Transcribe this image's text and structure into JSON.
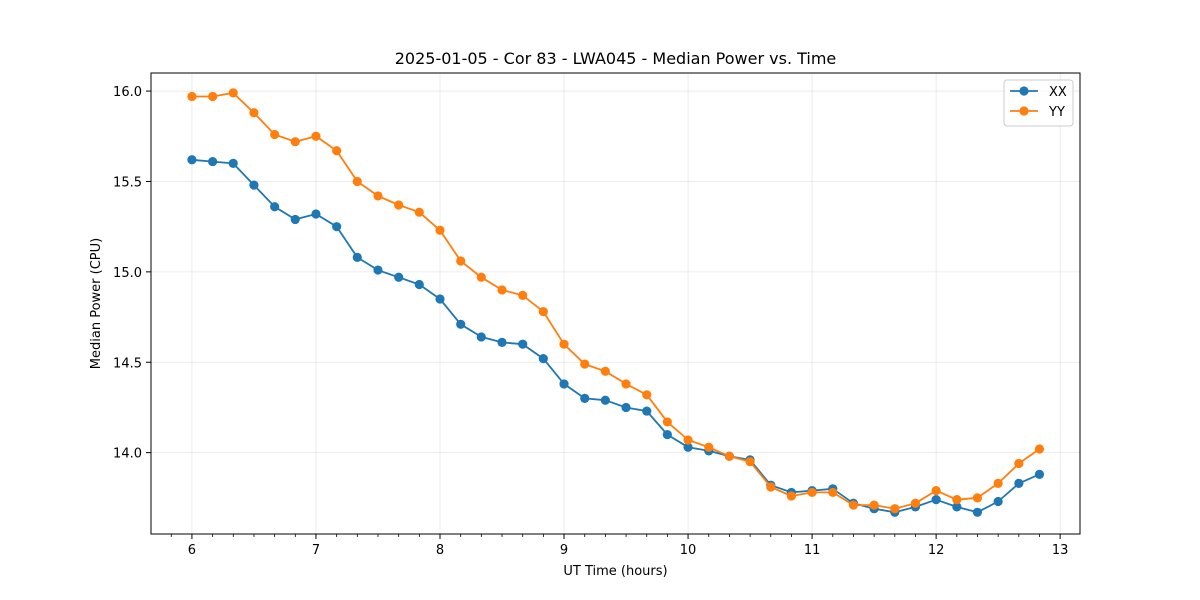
{
  "chart_data": {
    "type": "line",
    "title": "2025-01-05 - Cor 83 - LWA045 - Median Power vs. Time",
    "xlabel": "UT Time (hours)",
    "ylabel": "Median Power (CPU)",
    "xlim": [
      5.67,
      13.16
    ],
    "ylim": [
      13.55,
      16.1
    ],
    "xticks": [
      6,
      7,
      8,
      9,
      10,
      11,
      12,
      13
    ],
    "xtick_labels": [
      "6",
      "7",
      "8",
      "9",
      "10",
      "11",
      "12",
      "13"
    ],
    "x_minor_step": 0.16667,
    "yticks": [
      14.0,
      14.5,
      15.0,
      15.5,
      16.0
    ],
    "ytick_labels": [
      "14.0",
      "14.5",
      "15.0",
      "15.5",
      "16.0"
    ],
    "grid": true,
    "legend_position": "top-right",
    "x": [
      6.0,
      6.167,
      6.333,
      6.5,
      6.667,
      6.833,
      7.0,
      7.167,
      7.333,
      7.5,
      7.667,
      7.833,
      8.0,
      8.167,
      8.333,
      8.5,
      8.667,
      8.833,
      9.0,
      9.167,
      9.333,
      9.5,
      9.667,
      9.833,
      10.0,
      10.167,
      10.333,
      10.5,
      10.667,
      10.833,
      11.0,
      11.167,
      11.333,
      11.5,
      11.667,
      11.833,
      12.0,
      12.167,
      12.333,
      12.5,
      12.667,
      12.833
    ],
    "series": [
      {
        "name": "XX",
        "color": "#1f77b4",
        "values": [
          15.62,
          15.61,
          15.6,
          15.48,
          15.36,
          15.29,
          15.32,
          15.25,
          15.08,
          15.01,
          14.97,
          14.93,
          14.85,
          14.71,
          14.64,
          14.61,
          14.6,
          14.52,
          14.38,
          14.3,
          14.29,
          14.25,
          14.23,
          14.1,
          14.03,
          14.01,
          13.98,
          13.96,
          13.82,
          13.78,
          13.79,
          13.8,
          13.72,
          13.69,
          13.67,
          13.7,
          13.74,
          13.7,
          13.67,
          13.73,
          13.83,
          13.88
        ]
      },
      {
        "name": "YY",
        "color": "#ff7f0e",
        "values": [
          15.97,
          15.97,
          15.99,
          15.88,
          15.76,
          15.72,
          15.75,
          15.67,
          15.5,
          15.42,
          15.37,
          15.33,
          15.23,
          15.06,
          14.97,
          14.9,
          14.87,
          14.78,
          14.6,
          14.49,
          14.45,
          14.38,
          14.32,
          14.17,
          14.07,
          14.03,
          13.98,
          13.95,
          13.81,
          13.76,
          13.78,
          13.78,
          13.71,
          13.71,
          13.69,
          13.72,
          13.79,
          13.74,
          13.75,
          13.83,
          13.94,
          14.02
        ]
      }
    ]
  }
}
